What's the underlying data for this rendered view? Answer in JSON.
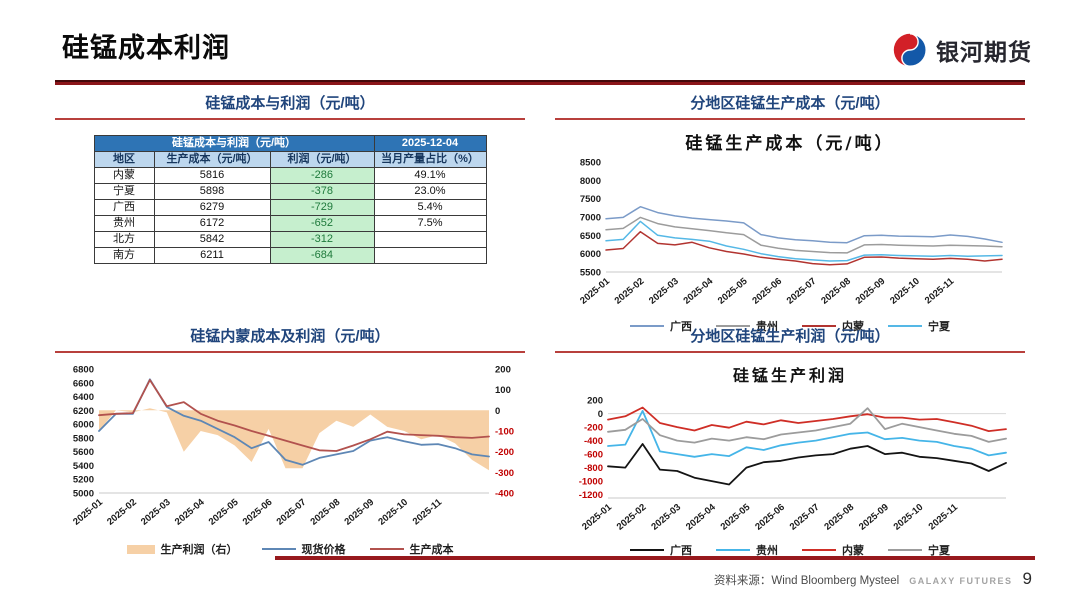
{
  "header": {
    "title": "硅锰成本利润",
    "logo_text": "银河期货"
  },
  "footer": {
    "source": "资料来源：Wind Bloomberg Mysteel",
    "brand": "GALAXY FUTURES",
    "page": "9"
  },
  "panels": {
    "table_panel_title": "硅锰成本与利润（元/吨）",
    "cost_panel_title": "分地区硅锰生产成本（元/吨）",
    "im_panel_title": "硅锰内蒙成本及利润（元/吨）",
    "profit_panel_title": "分地区硅锰生产利润（元/吨）"
  },
  "table": {
    "title": "硅锰成本与利润（元/吨）",
    "date": "2025-12-04",
    "columns": [
      "地区",
      "生产成本（元/吨）",
      "利润（元/吨）",
      "当月产量占比（%）"
    ],
    "rows": [
      {
        "region": "内蒙",
        "cost": "5816",
        "profit": "-286",
        "share": "49.1%"
      },
      {
        "region": "宁夏",
        "cost": "5898",
        "profit": "-378",
        "share": "23.0%"
      },
      {
        "region": "广西",
        "cost": "6279",
        "profit": "-729",
        "share": "5.4%"
      },
      {
        "region": "贵州",
        "cost": "6172",
        "profit": "-652",
        "share": "7.5%"
      },
      {
        "region": "北方",
        "cost": "5842",
        "profit": "-312",
        "share": ""
      },
      {
        "region": "南方",
        "cost": "6211",
        "profit": "-684",
        "share": ""
      }
    ]
  },
  "colors": {
    "accent_red": "#b8403c",
    "header_rule_red": "#8b1519",
    "title_blue": "#20457c",
    "table_header_bg": "#2e74b5",
    "table_subheader_bg": "#bdd7ee",
    "profit_cell_bg": "#c6efce",
    "profit_text_green": "#1f7a3c",
    "negative_tick_red": "#c00000"
  },
  "chart_data": [
    {
      "id": "regional-cost-chart",
      "type": "line",
      "title": "硅锰生产成本（元/吨）",
      "xlabel": "",
      "ylabel": "",
      "x_tick_labels": [
        "2025-01",
        "2025-02",
        "2025-03",
        "2025-04",
        "2025-05",
        "2025-06",
        "2025-07",
        "2025-08",
        "2025-09",
        "2025-10",
        "2025-11"
      ],
      "x_months_span": 11.5,
      "ylim": [
        5500,
        8500
      ],
      "yticks": [
        8500,
        8000,
        7500,
        7000,
        6500,
        6000,
        5500
      ],
      "grid": false,
      "legend_position": "bottom",
      "series": [
        {
          "name": "广西",
          "type": "line",
          "color": "#7b9bc8",
          "values": [
            6950,
            6990,
            7280,
            7120,
            7030,
            6970,
            6930,
            6890,
            6840,
            6520,
            6430,
            6380,
            6350,
            6310,
            6300,
            6490,
            6500,
            6480,
            6470,
            6460,
            6510,
            6470,
            6400,
            6310
          ]
        },
        {
          "name": "贵州",
          "type": "line",
          "color": "#9c9c9c",
          "values": [
            6650,
            6690,
            6990,
            6820,
            6730,
            6680,
            6630,
            6570,
            6520,
            6230,
            6150,
            6090,
            6060,
            6030,
            6020,
            6240,
            6250,
            6230,
            6220,
            6210,
            6230,
            6220,
            6210,
            6190
          ]
        },
        {
          "name": "内蒙",
          "type": "line",
          "color": "#b23430",
          "values": [
            6100,
            6140,
            6600,
            6280,
            6240,
            6310,
            6160,
            6060,
            5990,
            5900,
            5850,
            5800,
            5730,
            5700,
            5720,
            5900,
            5910,
            5880,
            5860,
            5850,
            5870,
            5850,
            5800,
            5850
          ]
        },
        {
          "name": "宁夏",
          "type": "line",
          "color": "#55b8e6",
          "values": [
            6350,
            6390,
            6880,
            6500,
            6430,
            6390,
            6340,
            6210,
            6120,
            6000,
            5920,
            5860,
            5830,
            5800,
            5810,
            5960,
            5970,
            5950,
            5940,
            5930,
            5950,
            5930,
            5940,
            5950
          ]
        }
      ]
    },
    {
      "id": "inner-mongolia-cost-profit-chart",
      "type": "dual-axis",
      "title": "",
      "x_tick_labels": [
        "2025-01",
        "2025-02",
        "2025-03",
        "2025-04",
        "2025-05",
        "2025-06",
        "2025-07",
        "2025-08",
        "2025-09",
        "2025-10",
        "2025-11"
      ],
      "x_months_span": 11.5,
      "ylim_left": [
        5000,
        6800
      ],
      "yticks_left": [
        6800,
        6600,
        6400,
        6200,
        6000,
        5800,
        5600,
        5400,
        5200,
        5000
      ],
      "ylim_right": [
        -400,
        200
      ],
      "yticks_right": [
        200,
        100,
        0,
        -100,
        -200,
        -300,
        -400
      ],
      "grid": false,
      "legend_position": "bottom",
      "series": [
        {
          "name": "生产利润（右）",
          "type": "area",
          "axis": "right",
          "color": "#f6d0a6",
          "values": [
            -100,
            0,
            -10,
            10,
            -10,
            -200,
            -100,
            -120,
            -170,
            -250,
            -90,
            -280,
            -280,
            -110,
            -50,
            -80,
            -20,
            -80,
            -100,
            -140,
            -120,
            -160,
            -240,
            -290
          ]
        },
        {
          "name": "现货价格",
          "type": "line",
          "axis": "left",
          "color": "#5e87b5",
          "values": [
            5900,
            6150,
            6150,
            6650,
            6250,
            6120,
            6050,
            5930,
            5810,
            5650,
            5740,
            5480,
            5410,
            5510,
            5560,
            5610,
            5760,
            5810,
            5750,
            5700,
            5710,
            5650,
            5560,
            5530
          ]
        },
        {
          "name": "生产成本",
          "type": "line",
          "axis": "left",
          "color": "#b2524e",
          "values": [
            6130,
            6150,
            6160,
            6640,
            6260,
            6320,
            6150,
            6050,
            5980,
            5900,
            5830,
            5760,
            5690,
            5620,
            5610,
            5690,
            5780,
            5890,
            5850,
            5840,
            5830,
            5810,
            5800,
            5820
          ]
        }
      ]
    },
    {
      "id": "regional-profit-chart",
      "type": "line",
      "title": "硅锰生产利润",
      "x_tick_labels": [
        "2025-01",
        "2025-02",
        "2025-03",
        "2025-04",
        "2025-05",
        "2025-06",
        "2025-07",
        "2025-08",
        "2025-09",
        "2025-10",
        "2025-11"
      ],
      "x_months_span": 11.5,
      "ylim": [
        -1250,
        260
      ],
      "yticks": [
        200,
        0,
        -200,
        -400,
        -600,
        -800,
        -1000,
        -1200
      ],
      "neg_red": true,
      "zero_line": true,
      "grid": false,
      "legend_position": "bottom",
      "series": [
        {
          "name": "广西",
          "type": "line",
          "color": "#141414",
          "values": [
            -780,
            -800,
            -450,
            -830,
            -850,
            -950,
            -1000,
            -1050,
            -800,
            -720,
            -700,
            -650,
            -620,
            -600,
            -520,
            -480,
            -600,
            -580,
            -640,
            -660,
            -700,
            -740,
            -850,
            -730
          ]
        },
        {
          "name": "贵州",
          "type": "line",
          "color": "#45b5e8",
          "values": [
            -480,
            -460,
            40,
            -560,
            -600,
            -640,
            -600,
            -630,
            -500,
            -540,
            -470,
            -430,
            -400,
            -350,
            -300,
            -280,
            -380,
            -360,
            -400,
            -420,
            -480,
            -520,
            -620,
            -580
          ]
        },
        {
          "name": "内蒙",
          "type": "line",
          "color": "#cf2e26",
          "values": [
            -90,
            -40,
            90,
            -140,
            -200,
            -250,
            -170,
            -210,
            -120,
            -160,
            -100,
            -140,
            -110,
            -80,
            -40,
            -10,
            -60,
            -60,
            -90,
            -80,
            -130,
            -180,
            -260,
            -230
          ]
        },
        {
          "name": "宁夏",
          "type": "line",
          "color": "#9c9c9c",
          "values": [
            -270,
            -240,
            -80,
            -320,
            -400,
            -430,
            -370,
            -400,
            -350,
            -380,
            -310,
            -280,
            -250,
            -200,
            -150,
            80,
            -230,
            -150,
            -200,
            -250,
            -300,
            -330,
            -420,
            -370
          ]
        }
      ]
    }
  ]
}
